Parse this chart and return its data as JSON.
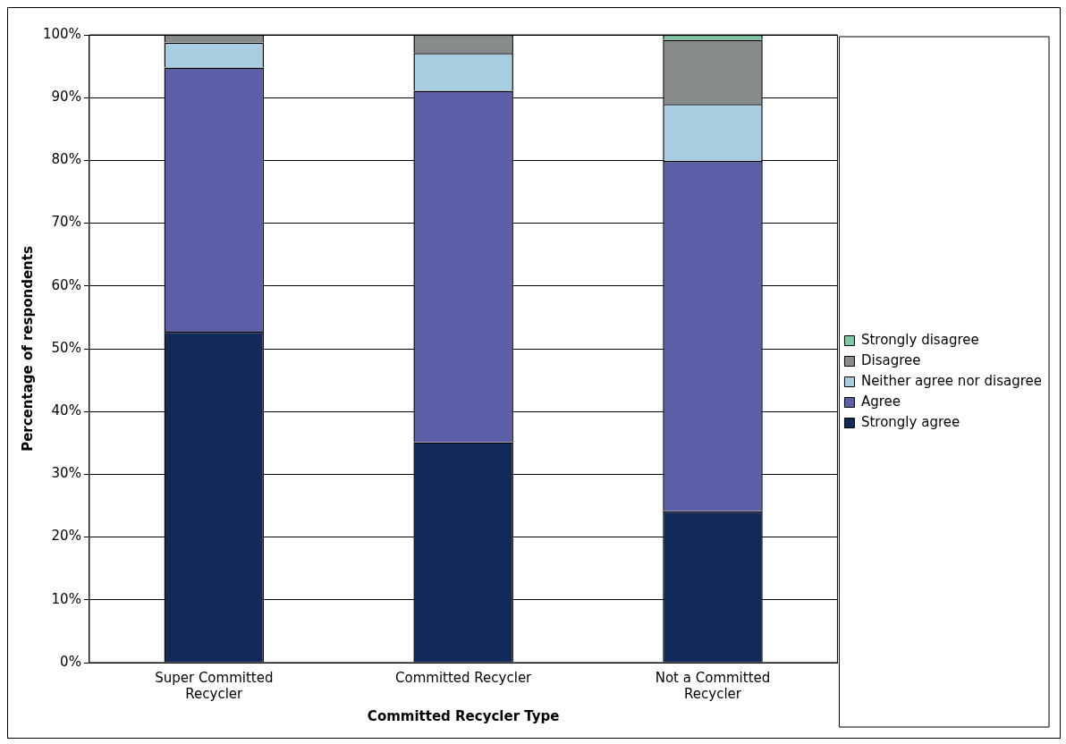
{
  "chart_data": {
    "type": "bar",
    "stacked": true,
    "xlabel": "Committed Recycler Type",
    "ylabel": "Percentage of respondents",
    "categories": [
      "Super Committed Recycler",
      "Committed Recycler",
      "Not a Committed Recycler"
    ],
    "series": [
      {
        "name": "Strongly agree",
        "color": "#112a5a",
        "values": [
          52.7,
          35.1,
          24.1
        ]
      },
      {
        "name": "Agree",
        "color": "#5a5fa8",
        "values": [
          42.1,
          56.0,
          55.8
        ]
      },
      {
        "name": "Neither agree nor disagree",
        "color": "#a8cde0",
        "values": [
          4.0,
          6.0,
          9.1
        ]
      },
      {
        "name": "Disagree",
        "color": "#878b8c",
        "values": [
          1.2,
          2.9,
          10.2
        ]
      },
      {
        "name": "Strongly disagree",
        "color": "#7ec7a3",
        "values": [
          0,
          0,
          0.8
        ]
      }
    ],
    "ylim": [
      0,
      100
    ],
    "yticks": [
      {
        "value": 0,
        "label": "0%"
      },
      {
        "value": 10,
        "label": "10%"
      },
      {
        "value": 20,
        "label": "20%"
      },
      {
        "value": 30,
        "label": "30%"
      },
      {
        "value": 40,
        "label": "40%"
      },
      {
        "value": 50,
        "label": "50%"
      },
      {
        "value": 60,
        "label": "60%"
      },
      {
        "value": 70,
        "label": "70%"
      },
      {
        "value": 80,
        "label": "80%"
      },
      {
        "value": 90,
        "label": "90%"
      },
      {
        "value": 100,
        "label": "100%"
      }
    ],
    "grid": "y",
    "legend": "right"
  }
}
